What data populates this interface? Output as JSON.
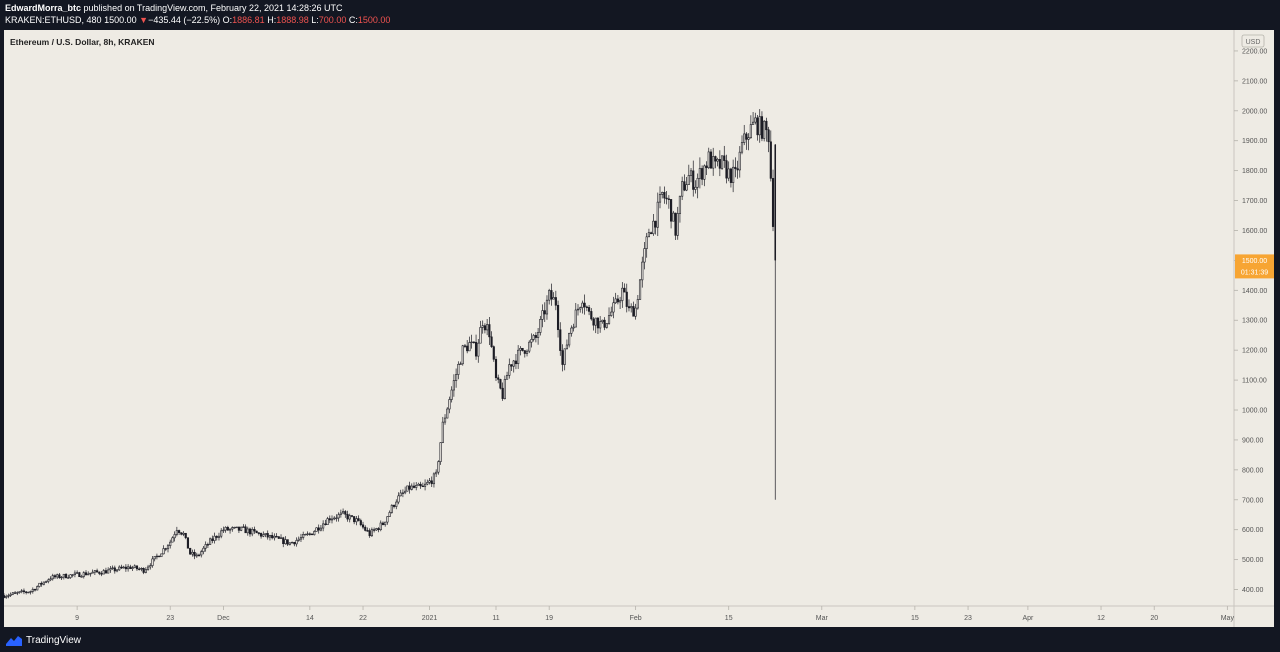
{
  "header": {
    "author": "EdwardMorra_btc",
    "published_text": "published on TradingView.com, February 22, 2021 14:28:26 UTC",
    "symbol": "KRAKEN:ETHUSD",
    "interval": "480",
    "last_price": "1500.00",
    "change_arrow": "▼",
    "change": "−435.44 (−22.5%)",
    "o_label": "O:",
    "o_value": "1886.81",
    "h_label": "H:",
    "h_value": "1888.98",
    "l_label": "L:",
    "l_value": "700.00",
    "c_label": "C:",
    "c_value": "1500.00"
  },
  "footer": {
    "brand": "TradingView"
  },
  "colors": {
    "plot_bg": "#eeebe4",
    "candle": "#1c1c24",
    "axis_text": "#555555",
    "price_label_bg": "#f7a533",
    "chrome_bg": "#131722",
    "down": "#ef5350"
  },
  "chart_data": {
    "type": "candlestick",
    "title": "Ethereum / U.S. Dollar, 8h, KRAKEN",
    "currency_badge": "USD",
    "y_ticks": [
      "400.00",
      "500.00",
      "600.00",
      "700.00",
      "800.00",
      "900.00",
      "1000.00",
      "1100.00",
      "1200.00",
      "1300.00",
      "1400.00",
      "1500.00",
      "1600.00",
      "1700.00",
      "1800.00",
      "1900.00",
      "2000.00",
      "2100.00",
      "2200.00"
    ],
    "ylim": [
      345,
      2270
    ],
    "x_labels": [
      {
        "label": "9",
        "date": "2020-11-09"
      },
      {
        "label": "23",
        "date": "2020-11-23"
      },
      {
        "label": "Dec",
        "date": "2020-12-01"
      },
      {
        "label": "14",
        "date": "2020-12-14"
      },
      {
        "label": "22",
        "date": "2020-12-22"
      },
      {
        "label": "2021",
        "date": "2021-01-01"
      },
      {
        "label": "11",
        "date": "2021-01-11"
      },
      {
        "label": "19",
        "date": "2021-01-19"
      },
      {
        "label": "Feb",
        "date": "2021-02-01"
      },
      {
        "label": "15",
        "date": "2021-02-15"
      },
      {
        "label": "Mar",
        "date": "2021-03-01"
      },
      {
        "label": "15",
        "date": "2021-03-15"
      },
      {
        "label": "23",
        "date": "2021-03-23"
      },
      {
        "label": "Apr",
        "date": "2021-04-01"
      },
      {
        "label": "12",
        "date": "2021-04-12"
      },
      {
        "label": "20",
        "date": "2021-04-20"
      },
      {
        "label": "May",
        "date": "2021-05-01"
      }
    ],
    "x_range": [
      "2020-10-29",
      "2021-05-02"
    ],
    "last_price_label": {
      "value": "1500.00",
      "countdown": "01:31:39"
    },
    "grid": false,
    "closes": [
      [
        "2020-10-29",
        380
      ],
      [
        "2020-11-02",
        395
      ],
      [
        "2020-11-05",
        440
      ],
      [
        "2020-11-09",
        450
      ],
      [
        "2020-11-13",
        460
      ],
      [
        "2020-11-17",
        475
      ],
      [
        "2020-11-19",
        465
      ],
      [
        "2020-11-21",
        510
      ],
      [
        "2020-11-23",
        560
      ],
      [
        "2020-11-24",
        605
      ],
      [
        "2020-11-25",
        585
      ],
      [
        "2020-11-26",
        520
      ],
      [
        "2020-11-27",
        510
      ],
      [
        "2020-11-29",
        560
      ],
      [
        "2020-12-01",
        600
      ],
      [
        "2020-12-04",
        600
      ],
      [
        "2020-12-08",
        575
      ],
      [
        "2020-12-11",
        555
      ],
      [
        "2020-12-14",
        585
      ],
      [
        "2020-12-17",
        640
      ],
      [
        "2020-12-19",
        650
      ],
      [
        "2020-12-21",
        630
      ],
      [
        "2020-12-23",
        585
      ],
      [
        "2020-12-25",
        620
      ],
      [
        "2020-12-27",
        700
      ],
      [
        "2020-12-29",
        740
      ],
      [
        "2020-12-31",
        740
      ],
      [
        "2021-01-02",
        780
      ],
      [
        "2021-01-03",
        950
      ],
      [
        "2021-01-04",
        1040
      ],
      [
        "2021-01-05",
        1120
      ],
      [
        "2021-01-06",
        1200
      ],
      [
        "2021-01-07",
        1220
      ],
      [
        "2021-01-08",
        1200
      ],
      [
        "2021-01-09",
        1300
      ],
      [
        "2021-01-10",
        1260
      ],
      [
        "2021-01-11",
        1100
      ],
      [
        "2021-01-12",
        1050
      ],
      [
        "2021-01-13",
        1150
      ],
      [
        "2021-01-15",
        1200
      ],
      [
        "2021-01-17",
        1240
      ],
      [
        "2021-01-19",
        1380
      ],
      [
        "2021-01-20",
        1360
      ],
      [
        "2021-01-21",
        1150
      ],
      [
        "2021-01-22",
        1260
      ],
      [
        "2021-01-24",
        1380
      ],
      [
        "2021-01-25",
        1320
      ],
      [
        "2021-01-27",
        1280
      ],
      [
        "2021-01-29",
        1350
      ],
      [
        "2021-01-30",
        1400
      ],
      [
        "2021-01-31",
        1330
      ],
      [
        "2021-02-01",
        1340
      ],
      [
        "2021-02-02",
        1480
      ],
      [
        "2021-02-03",
        1600
      ],
      [
        "2021-02-04",
        1640
      ],
      [
        "2021-02-05",
        1720
      ],
      [
        "2021-02-06",
        1690
      ],
      [
        "2021-02-07",
        1600
      ],
      [
        "2021-02-08",
        1740
      ],
      [
        "2021-02-09",
        1780
      ],
      [
        "2021-02-10",
        1760
      ],
      [
        "2021-02-11",
        1800
      ],
      [
        "2021-02-12",
        1840
      ],
      [
        "2021-02-13",
        1810
      ],
      [
        "2021-02-14",
        1820
      ],
      [
        "2021-02-15",
        1790
      ],
      [
        "2021-02-16",
        1780
      ],
      [
        "2021-02-17",
        1880
      ],
      [
        "2021-02-18",
        1930
      ],
      [
        "2021-02-19",
        1960
      ],
      [
        "2021-02-20",
        1940
      ],
      [
        "2021-02-21",
        1920
      ],
      [
        "2021-02-22",
        1500
      ]
    ]
  }
}
